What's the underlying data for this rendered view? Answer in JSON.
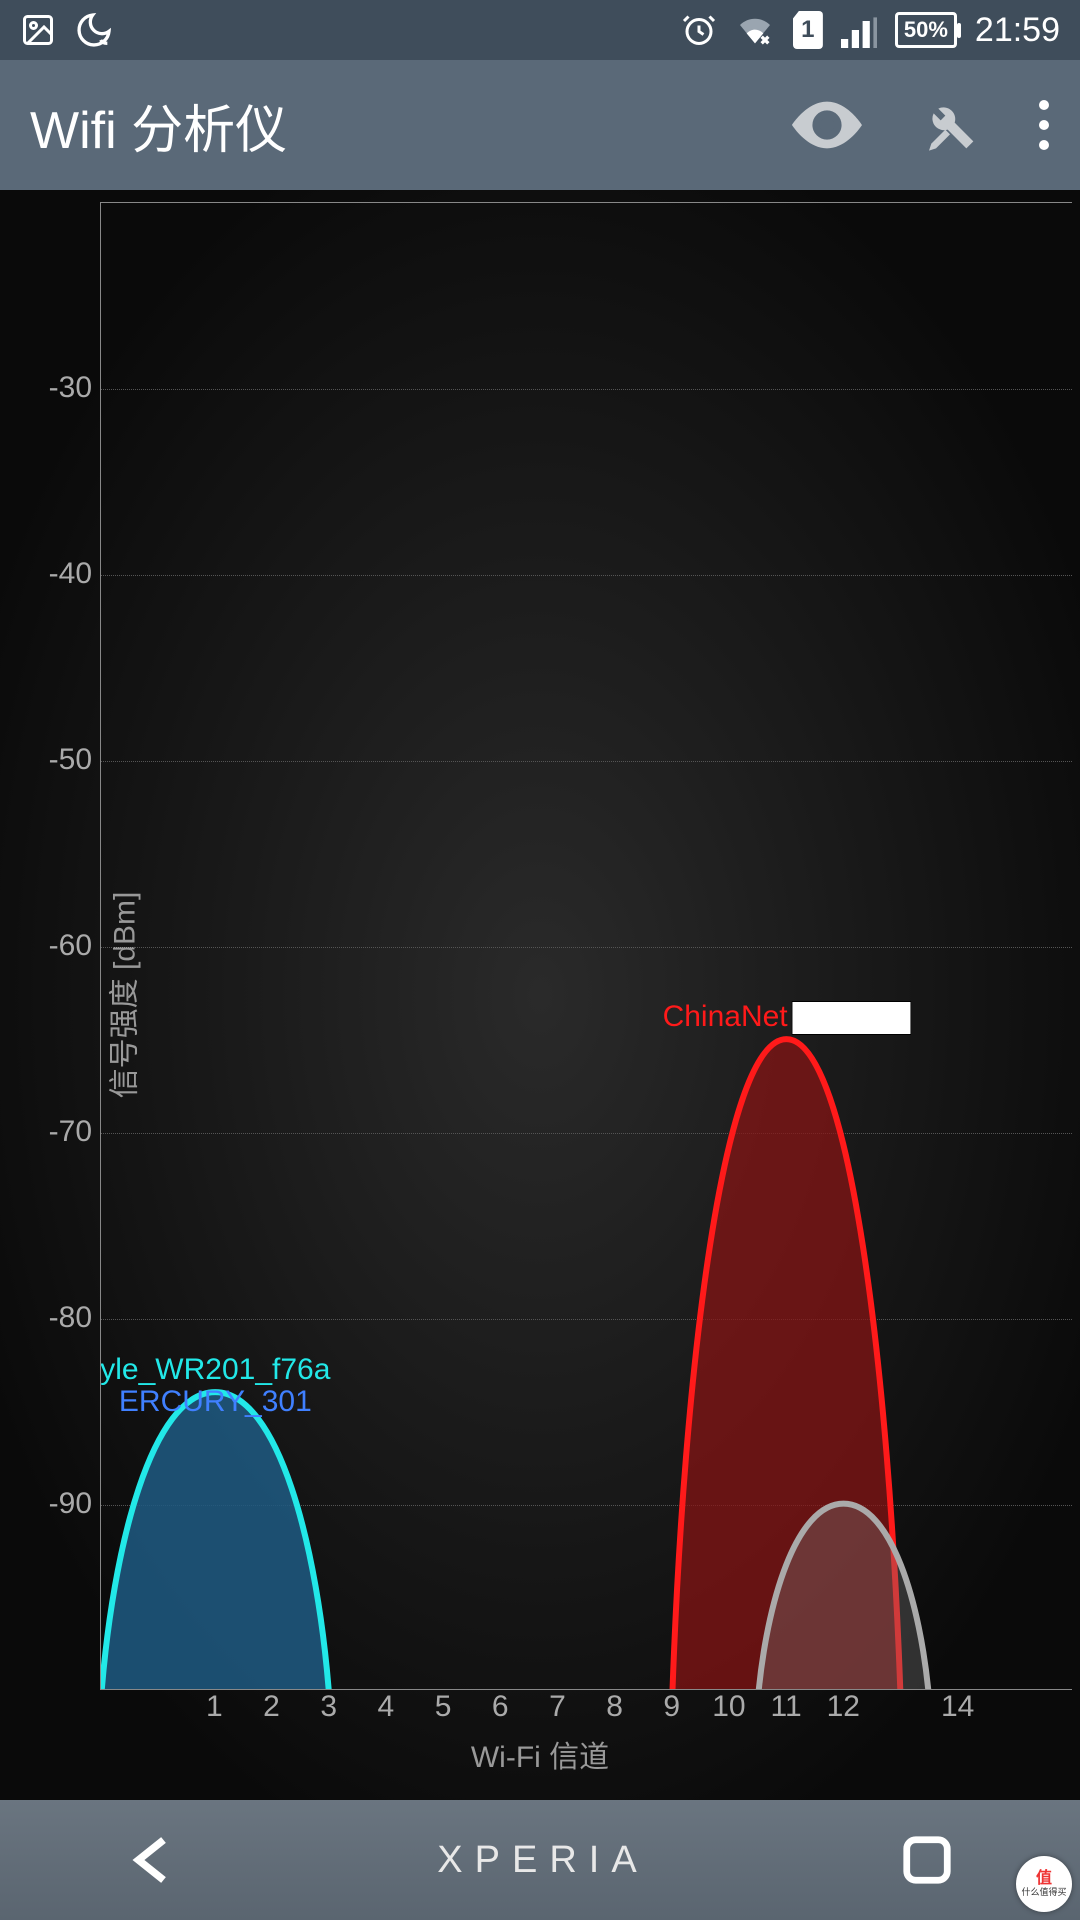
{
  "status": {
    "battery_text": "50%",
    "clock": "21:59",
    "sim_label": "1"
  },
  "appbar": {
    "title": "Wifi 分析仪"
  },
  "chart": {
    "y_label": "信号强度 [dBm]",
    "x_label": "Wi-Fi 信道",
    "y_min": -100,
    "y_max": -20,
    "y_ticks": [
      -30,
      -40,
      -50,
      -60,
      -70,
      -80,
      -90
    ],
    "x_ticks": [
      1,
      2,
      3,
      4,
      5,
      6,
      7,
      8,
      9,
      10,
      11,
      12,
      14
    ],
    "x_min": -1,
    "x_max": 16,
    "grid_color": "#555555",
    "axis_text_color": "#aaaaaa",
    "background_inner": "#1a1a1a",
    "networks": [
      {
        "ssid": "yle_WR201_f76a",
        "channel": 1,
        "signal": -84,
        "width": 4,
        "stroke": "#22e8e8",
        "fill": "rgba(30,90,130,0.85)",
        "label_color": "#22e8e8",
        "secondary_label": "ERCURY_301",
        "secondary_color": "#4080ff"
      },
      {
        "ssid": "ChinaNet",
        "channel": 11,
        "signal": -65,
        "width": 4,
        "stroke": "#ff1a1a",
        "fill": "rgba(140,20,20,0.7)",
        "label_color": "#ff1a1a",
        "has_redact": true
      },
      {
        "ssid": "",
        "channel": 12,
        "signal": -90,
        "width": 3,
        "stroke": "#aaaaaa",
        "fill": "rgba(120,120,120,0.35)",
        "label_color": "#aaaaaa"
      }
    ]
  },
  "navbar": {
    "brand": "XPERIA"
  },
  "watermark": {
    "top": "值",
    "bottom": "什么值得买"
  }
}
